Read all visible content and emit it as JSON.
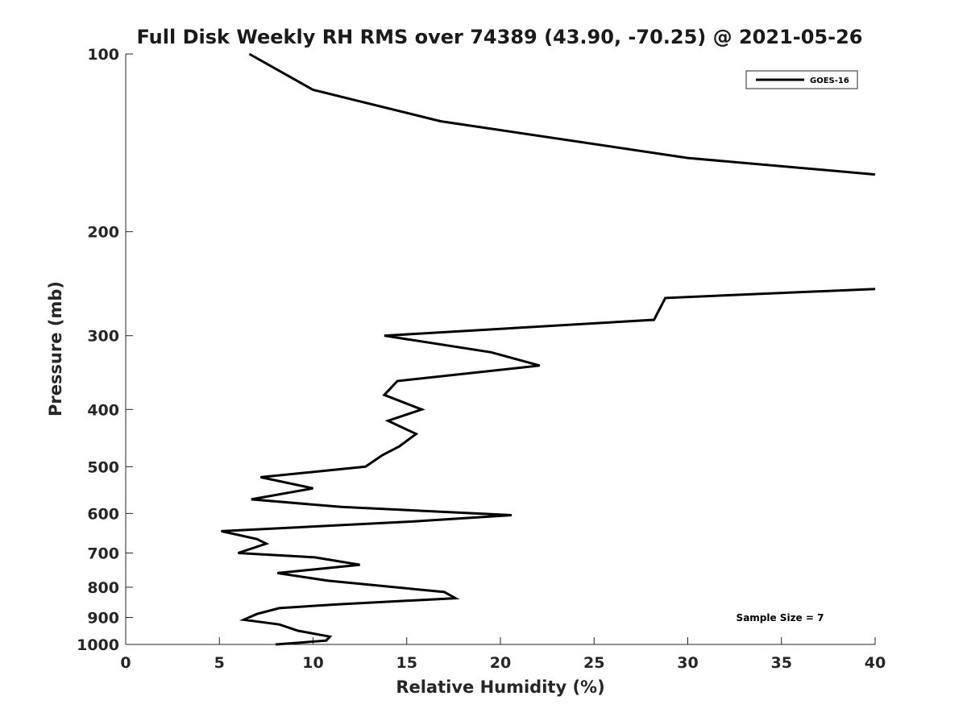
{
  "chart_data": {
    "type": "line",
    "title": "Full Disk Weekly RH RMS over 74389 (43.90, -70.25) @ 2021-05-26",
    "xlabel": "Relative Humidity (%)",
    "ylabel": "Pressure (mb)",
    "xlim": [
      0,
      40
    ],
    "ylim": [
      1000,
      100
    ],
    "yscale": "log",
    "yreversed": true,
    "grid": false,
    "legend_position": "top-right",
    "x_ticks": [
      0,
      5,
      10,
      15,
      20,
      25,
      30,
      35,
      40
    ],
    "y_ticks": [
      100,
      200,
      300,
      400,
      500,
      600,
      700,
      800,
      900,
      1000
    ],
    "x_tick_labels": [
      "0",
      "5",
      "10",
      "15",
      "20",
      "25",
      "30",
      "35",
      "40"
    ],
    "y_tick_labels": [
      "100",
      "200",
      "300",
      "400",
      "500",
      "600",
      "700",
      "800",
      "900",
      "1000"
    ],
    "annotation": "Sample Size = 7",
    "series": [
      {
        "name": "GOES-16",
        "color": "#000000",
        "segments": [
          [
            [
              6.6,
              100
            ],
            [
              10.0,
              115
            ],
            [
              16.8,
              130
            ],
            [
              30.0,
              150
            ],
            [
              40.0,
              160
            ]
          ],
          [
            [
              40.0,
              250
            ],
            [
              28.8,
              259
            ],
            [
              28.2,
              282
            ],
            [
              13.8,
              300
            ],
            [
              19.5,
              320
            ],
            [
              22.1,
              337
            ],
            [
              14.5,
              358
            ],
            [
              13.8,
              378
            ],
            [
              15.8,
              400
            ],
            [
              14.0,
              418
            ],
            [
              15.5,
              440
            ],
            [
              14.6,
              462
            ],
            [
              13.7,
              478
            ],
            [
              12.8,
              500
            ],
            [
              7.2,
              521
            ],
            [
              10.0,
              544
            ],
            [
              6.7,
              568
            ],
            [
              11.5,
              585
            ],
            [
              20.6,
              604
            ],
            [
              15.0,
              620
            ],
            [
              5.1,
              643
            ],
            [
              7.0,
              663
            ],
            [
              7.5,
              675
            ],
            [
              6.0,
              700
            ],
            [
              10.1,
              712
            ],
            [
              12.5,
              733
            ],
            [
              8.1,
              757
            ],
            [
              10.8,
              780
            ],
            [
              17.0,
              815
            ],
            [
              17.6,
              835
            ],
            [
              11.4,
              855
            ],
            [
              8.2,
              868
            ],
            [
              7.0,
              888
            ],
            [
              6.3,
              908
            ],
            [
              8.2,
              925
            ],
            [
              9.2,
              948
            ],
            [
              10.9,
              970
            ],
            [
              10.7,
              985
            ],
            [
              8.0,
              1000
            ]
          ]
        ]
      }
    ]
  }
}
